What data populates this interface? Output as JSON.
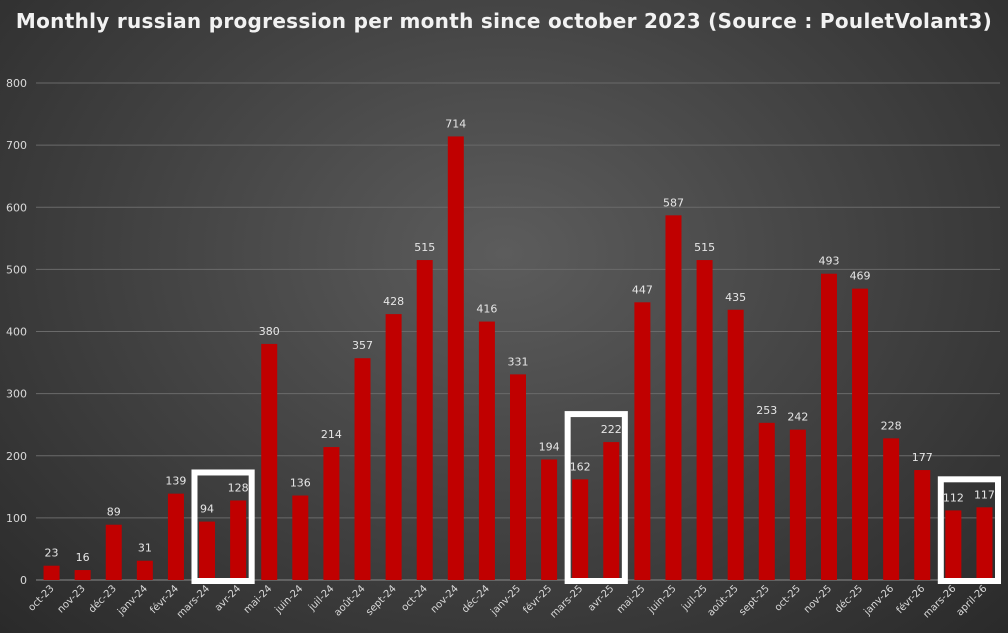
{
  "chart_data": {
    "type": "bar",
    "title": "Monthly russian progression per month since october 2023 (Source : PouletVolant3)",
    "xlabel": "",
    "ylabel": "",
    "ylim": [
      0,
      800
    ],
    "yticks": [
      0,
      100,
      200,
      300,
      400,
      500,
      600,
      700,
      800
    ],
    "grid": true,
    "bar_color": "#c00000",
    "highlight_color": "#ffffff",
    "categories": [
      "oct-23",
      "nov-23",
      "déc-23",
      "janv-24",
      "févr-24",
      "mars-24",
      "avr-24",
      "mai-24",
      "juin-24",
      "juil-24",
      "août-24",
      "sept-24",
      "oct-24",
      "nov-24",
      "déc-24",
      "janv-25",
      "févr-25",
      "mars-25",
      "avr-25",
      "mai-25",
      "juin-25",
      "juil-25",
      "août-25",
      "sept-25",
      "oct-25",
      "nov-25",
      "déc-25",
      "janv-26",
      "févr-26",
      "mars-26",
      "april-26"
    ],
    "values": [
      23,
      16,
      89,
      31,
      139,
      94,
      128,
      380,
      136,
      214,
      357,
      428,
      515,
      714,
      416,
      331,
      194,
      162,
      222,
      447,
      587,
      515,
      435,
      253,
      242,
      493,
      469,
      228,
      177,
      112,
      117
    ],
    "highlighted_groups": [
      [
        "mars-24",
        "avr-24"
      ],
      [
        "mars-25",
        "avr-25"
      ],
      [
        "mars-26",
        "april-26"
      ]
    ]
  }
}
